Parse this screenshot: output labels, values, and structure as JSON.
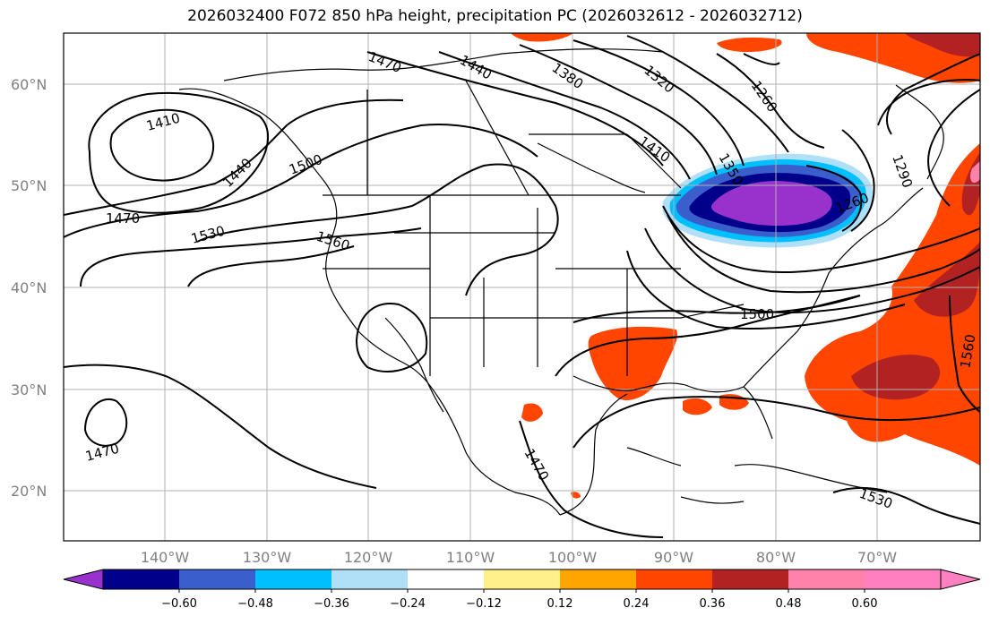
{
  "title": "2026032400 F072 850 hPa height, precipitation PC (2026032612 - 2026032712)",
  "map": {
    "lat_labels": [
      "60°N",
      "50°N",
      "40°N",
      "30°N",
      "20°N"
    ],
    "lon_labels": [
      "140°W",
      "130°W",
      "120°W",
      "110°W",
      "100°W",
      "90°W",
      "80°W",
      "70°W"
    ],
    "height_contour_labels": [
      "1410",
      "1440",
      "1470",
      "1530",
      "1500",
      "1560",
      "1470",
      "1440",
      "1380",
      "1320",
      "1260",
      "1410",
      "1350",
      "1290",
      "1260",
      "1500",
      "1560",
      "1470",
      "1470",
      "1530"
    ]
  },
  "colorbar": {
    "ticks": [
      "−0.60",
      "−0.48",
      "−0.36",
      "−0.24",
      "−0.12",
      "0.12",
      "0.24",
      "0.36",
      "0.48",
      "0.60"
    ],
    "colors": [
      "#9932cc",
      "#00008b",
      "#3a5fcd",
      "#00bfff",
      "#b0e0f8",
      "#ffffff",
      "#fff08c",
      "#ffa500",
      "#ff4500",
      "#b22222",
      "#ff82ab",
      "#ff80c0"
    ]
  }
}
